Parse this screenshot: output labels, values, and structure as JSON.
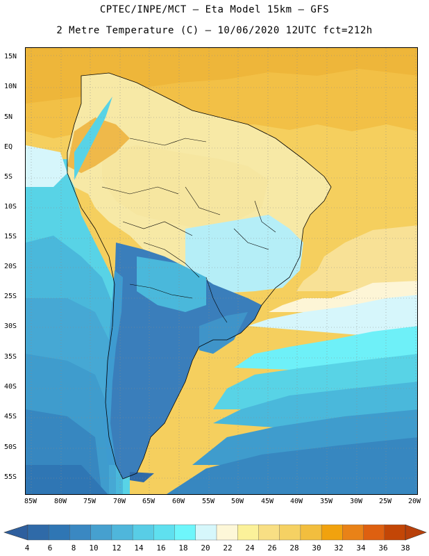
{
  "header": {
    "line1": "CPTEC/INPE/MCT –  Eta Model 15km – GFS",
    "line2": "2 Metre Temperature (C) – 10/06/2020 12UTC fct=212h"
  },
  "map": {
    "lat_labels": [
      "15N",
      "10N",
      "5N",
      "EQ",
      "5S",
      "10S",
      "15S",
      "20S",
      "25S",
      "30S",
      "35S",
      "40S",
      "45S",
      "50S",
      "55S"
    ],
    "lon_labels": [
      "85W",
      "80W",
      "75W",
      "70W",
      "65W",
      "60W",
      "55W",
      "50W",
      "45W",
      "40W",
      "35W",
      "30W",
      "25W",
      "20W"
    ],
    "ocean_color": "#f4c95a"
  },
  "colorbar": {
    "labels": [
      "4",
      "6",
      "8",
      "10",
      "12",
      "14",
      "16",
      "18",
      "20",
      "22",
      "24",
      "26",
      "28",
      "30",
      "32",
      "34",
      "36",
      "38"
    ],
    "colors": [
      "#2f6aa8",
      "#2f76b4",
      "#3a88c2",
      "#46a0cf",
      "#4fb6db",
      "#58cde6",
      "#5fe0ef",
      "#6ef6fb",
      "#d6f7fb",
      "#fdf7d8",
      "#fbf19a",
      "#f8df84",
      "#f5d163",
      "#f2be3e",
      "#f1a20e",
      "#e98217",
      "#de6010",
      "#c34606"
    ],
    "arrow_low_color": "#2e5f9e",
    "arrow_high_color": "#b8400a"
  }
}
